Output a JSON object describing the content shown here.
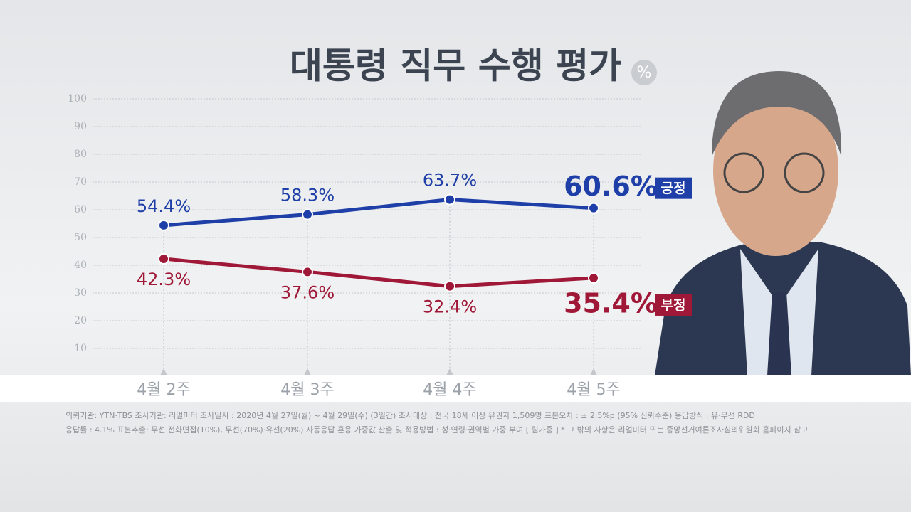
{
  "chart_data": {
    "type": "line",
    "title": "대통령 직무 수행 평가",
    "unit": "%",
    "categories": [
      "4월 2주",
      "4월 3주",
      "4월 4주",
      "4월 5주"
    ],
    "series": [
      {
        "name": "긍정",
        "color": "#1f3fa8",
        "values": [
          54.4,
          58.3,
          63.7,
          60.6
        ],
        "value_labels": [
          "54.4%",
          "58.3%",
          "63.7%",
          "60.6%"
        ]
      },
      {
        "name": "부정",
        "color": "#a01838",
        "values": [
          42.3,
          37.6,
          32.4,
          35.4
        ],
        "value_labels": [
          "42.3%",
          "37.6%",
          "32.4%",
          "35.4%"
        ]
      }
    ],
    "ylim": [
      0,
      100
    ],
    "yticks": [
      10,
      20,
      30,
      40,
      50,
      60,
      70,
      80,
      90,
      100
    ],
    "grid": true,
    "footnotes": [
      "의뢰기관: YTN·TBS    조사기관: 리얼미터   조사일시 : 2020년 4월 27일(월) ~ 4월 29일(수) (3일간)    조사대상 : 전국 18세 이상 유권자 1,509명    표본오차 : ± 2.5%p (95% 신뢰수준)    응답방식 : 유·무선 RDD",
      "응답률 : 4.1%    표본추출: 무선 전화면접(10%), 무선(70%)·유선(20%) 자동응답 혼용     가중값 산출 및 적용방법 : 성·연령·권역별 가중 부여 [ 림가중 ]    * 그 밖의 사항은 리얼미터 또는 중앙선거여론조사심의위원회 홈페이지 참고"
    ]
  }
}
